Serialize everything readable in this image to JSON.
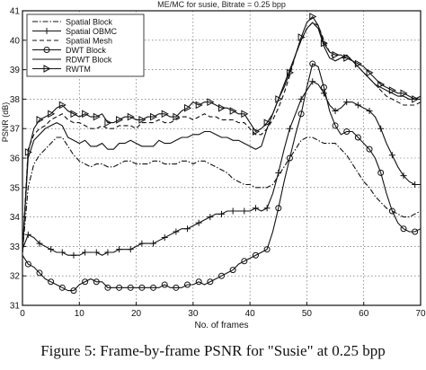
{
  "chart_data": {
    "type": "line",
    "title": "ME/MC for susie, Bitrate = 0.25 bpp",
    "xlabel": "No. of frames",
    "ylabel": "PSNR (dB)",
    "xlim": [
      0,
      70
    ],
    "ylim": [
      31,
      41
    ],
    "xticks": [
      0,
      10,
      20,
      30,
      40,
      50,
      60,
      70
    ],
    "yticks": [
      31,
      32,
      33,
      34,
      35,
      36,
      37,
      38,
      39,
      40,
      41
    ],
    "grid": true,
    "legend_position": "top-left",
    "x": [
      0,
      1,
      2,
      3,
      4,
      5,
      6,
      7,
      8,
      9,
      10,
      11,
      12,
      13,
      14,
      15,
      16,
      17,
      18,
      19,
      20,
      21,
      22,
      23,
      24,
      25,
      26,
      27,
      28,
      29,
      30,
      31,
      32,
      33,
      34,
      35,
      36,
      37,
      38,
      39,
      40,
      41,
      42,
      43,
      44,
      45,
      46,
      47,
      48,
      49,
      50,
      51,
      52,
      53,
      54,
      55,
      56,
      57,
      58,
      59,
      60,
      61,
      62,
      63,
      64,
      65,
      66,
      67,
      68,
      69,
      70
    ],
    "series": [
      {
        "name": "Spatial Block",
        "style": "dashdot",
        "marker": "none",
        "values": [
          32.8,
          35.0,
          35.8,
          36.1,
          36.3,
          36.5,
          36.7,
          36.7,
          36.4,
          36.1,
          35.9,
          35.8,
          35.7,
          35.8,
          35.8,
          35.7,
          35.7,
          35.8,
          35.9,
          35.9,
          35.8,
          35.8,
          35.8,
          35.9,
          35.9,
          35.8,
          35.8,
          35.8,
          35.9,
          35.9,
          35.8,
          35.9,
          35.9,
          35.8,
          35.7,
          35.6,
          35.5,
          35.3,
          35.2,
          35.1,
          35.1,
          35.0,
          35.0,
          35.0,
          35.1,
          35.4,
          35.7,
          36.0,
          36.3,
          36.6,
          36.7,
          36.7,
          36.6,
          36.5,
          36.5,
          36.5,
          36.3,
          36.1,
          35.8,
          35.5,
          35.2,
          35.0,
          34.7,
          34.5,
          34.3,
          34.2,
          34.1,
          34.0,
          34.0,
          34.1,
          34.2
        ]
      },
      {
        "name": "Spatial OBMC",
        "style": "solid",
        "marker": "plus",
        "values": [
          32.9,
          33.4,
          33.3,
          33.1,
          33.0,
          32.9,
          32.8,
          32.8,
          32.7,
          32.7,
          32.7,
          32.8,
          32.8,
          32.8,
          32.7,
          32.8,
          32.8,
          32.9,
          32.9,
          32.9,
          33.0,
          33.1,
          33.1,
          33.1,
          33.2,
          33.3,
          33.4,
          33.5,
          33.6,
          33.6,
          33.7,
          33.8,
          33.9,
          34.0,
          34.1,
          34.1,
          34.2,
          34.2,
          34.2,
          34.2,
          34.2,
          34.3,
          34.2,
          34.3,
          34.8,
          35.5,
          36.3,
          37.0,
          37.5,
          38.0,
          38.3,
          38.6,
          38.5,
          38.2,
          37.8,
          37.6,
          37.7,
          37.9,
          37.9,
          37.8,
          37.7,
          37.6,
          37.4,
          37.0,
          36.5,
          36.1,
          35.7,
          35.4,
          35.2,
          35.1,
          35.1
        ]
      },
      {
        "name": "Spatial Mesh",
        "style": "dashed",
        "marker": "none",
        "values": [
          32.8,
          36.3,
          36.8,
          37.0,
          37.1,
          37.3,
          37.4,
          37.5,
          37.3,
          37.2,
          37.2,
          37.1,
          37.0,
          37.0,
          37.1,
          37.0,
          37.0,
          37.1,
          37.1,
          37.1,
          37.0,
          37.2,
          37.2,
          37.2,
          37.3,
          37.2,
          37.2,
          37.3,
          37.4,
          37.4,
          37.3,
          37.4,
          37.5,
          37.4,
          37.4,
          37.3,
          37.3,
          37.3,
          37.2,
          37.2,
          37.0,
          36.8,
          36.8,
          37.0,
          37.3,
          37.7,
          38.2,
          38.8,
          39.5,
          40.0,
          40.4,
          40.6,
          40.5,
          40.0,
          39.6,
          39.3,
          39.4,
          39.4,
          39.3,
          39.1,
          38.9,
          38.7,
          38.5,
          38.3,
          38.1,
          38.0,
          37.9,
          37.8,
          37.8,
          37.8,
          37.9
        ]
      },
      {
        "name": "DWT Block",
        "style": "solid",
        "marker": "circle",
        "values": [
          32.7,
          32.4,
          32.3,
          32.1,
          31.9,
          31.8,
          31.7,
          31.6,
          31.5,
          31.5,
          31.7,
          31.8,
          31.9,
          31.8,
          31.8,
          31.6,
          31.6,
          31.6,
          31.6,
          31.6,
          31.6,
          31.6,
          31.6,
          31.6,
          31.6,
          31.7,
          31.6,
          31.6,
          31.6,
          31.7,
          31.7,
          31.8,
          31.7,
          31.8,
          31.9,
          32.0,
          32.1,
          32.2,
          32.4,
          32.5,
          32.6,
          32.7,
          32.8,
          32.9,
          33.5,
          34.3,
          35.2,
          36.0,
          36.8,
          37.5,
          38.4,
          39.2,
          39.1,
          38.4,
          37.6,
          37.1,
          36.8,
          36.9,
          36.9,
          36.7,
          36.5,
          36.3,
          36.0,
          35.5,
          34.8,
          34.2,
          33.8,
          33.6,
          33.5,
          33.5,
          33.6
        ]
      },
      {
        "name": "RDWT Block",
        "style": "solid",
        "marker": "none",
        "values": [
          32.8,
          36.0,
          36.6,
          36.8,
          37.0,
          37.1,
          37.2,
          37.1,
          36.7,
          36.6,
          36.5,
          36.6,
          36.4,
          36.4,
          36.5,
          36.3,
          36.3,
          36.5,
          36.5,
          36.6,
          36.5,
          36.4,
          36.4,
          36.4,
          36.6,
          36.5,
          36.5,
          36.6,
          36.7,
          36.7,
          36.8,
          36.8,
          36.9,
          36.9,
          36.8,
          36.7,
          36.7,
          36.6,
          36.6,
          36.5,
          36.4,
          36.3,
          36.4,
          37.0,
          37.5,
          38.0,
          38.5,
          39.0,
          39.5,
          40.0,
          40.4,
          40.6,
          40.4,
          39.8,
          39.4,
          39.3,
          39.4,
          39.5,
          39.3,
          39.1,
          38.9,
          38.7,
          38.5,
          38.4,
          38.3,
          38.2,
          38.1,
          38.1,
          38.0,
          38.0,
          38.1
        ]
      },
      {
        "name": "RWTM",
        "style": "solid",
        "marker": "triangle-right",
        "values": [
          32.8,
          36.2,
          37.0,
          37.3,
          37.4,
          37.5,
          37.7,
          37.8,
          37.6,
          37.5,
          37.4,
          37.5,
          37.4,
          37.4,
          37.5,
          37.2,
          37.2,
          37.3,
          37.4,
          37.4,
          37.3,
          37.3,
          37.4,
          37.4,
          37.5,
          37.5,
          37.4,
          37.4,
          37.6,
          37.7,
          37.9,
          37.8,
          37.9,
          37.9,
          37.8,
          37.7,
          37.7,
          37.6,
          37.5,
          37.5,
          37.2,
          36.9,
          37.0,
          37.2,
          37.5,
          38.0,
          38.4,
          38.9,
          39.5,
          40.1,
          40.6,
          40.8,
          40.5,
          39.9,
          39.6,
          39.5,
          39.5,
          39.4,
          39.3,
          39.2,
          39.1,
          38.9,
          38.7,
          38.5,
          38.4,
          38.3,
          38.2,
          38.2,
          38.1,
          38.0,
          38.0
        ]
      }
    ]
  },
  "caption": "Figure 5: Frame-by-frame PSNR for \"Susie\" at 0.25 bpp"
}
